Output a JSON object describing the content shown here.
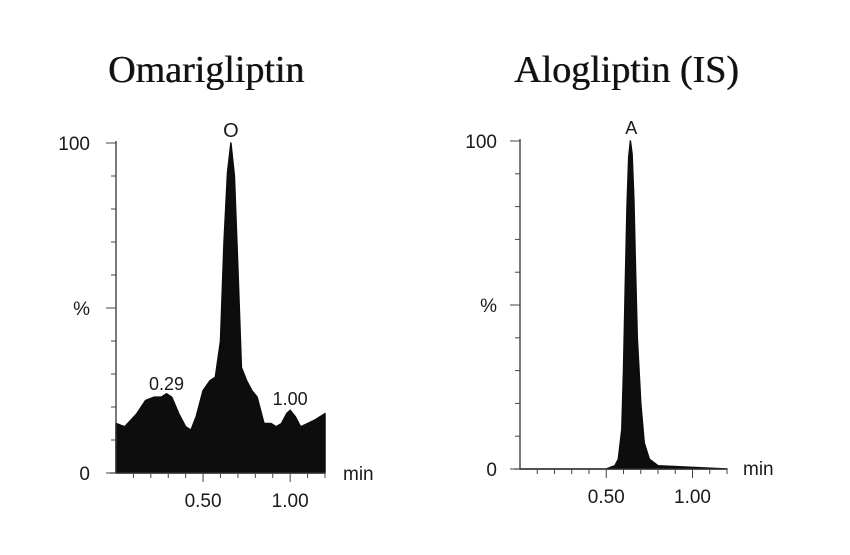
{
  "chart_data": [
    {
      "type": "line",
      "title": "Omarigliptin",
      "xlabel": "min",
      "ylabel": "%",
      "xlim": [
        0,
        1.2
      ],
      "ylim": [
        0,
        100
      ],
      "x_tick_labels": [
        "0.50",
        "1.00"
      ],
      "x_ticks": [
        0.5,
        1.0
      ],
      "y_tick_labels": [
        "0",
        "%",
        "100"
      ],
      "y_ticks": [
        0,
        50,
        100
      ],
      "filled": true,
      "series": [
        {
          "x": [
            0.0,
            0.05,
            0.12,
            0.17,
            0.22,
            0.26,
            0.29,
            0.32,
            0.36,
            0.4,
            0.43,
            0.46,
            0.5,
            0.54,
            0.57,
            0.6,
            0.62,
            0.64,
            0.66,
            0.68,
            0.7,
            0.72,
            0.75,
            0.78,
            0.81,
            0.85,
            0.89,
            0.92,
            0.95,
            0.98,
            1.0,
            1.03,
            1.06,
            1.1,
            1.14,
            1.2
          ],
          "y": [
            15,
            14,
            18,
            22,
            23,
            23,
            24,
            23,
            18,
            14,
            13,
            17,
            25,
            28,
            29,
            40,
            70,
            91,
            100,
            90,
            62,
            32,
            28,
            25,
            23,
            15,
            15,
            14,
            15,
            18,
            19,
            17,
            14,
            15,
            16,
            18
          ]
        }
      ],
      "annotations": [
        "O",
        "0.29",
        "1.00"
      ]
    },
    {
      "type": "line",
      "title": "Alogliptin (IS)",
      "xlabel": "min",
      "ylabel": "%",
      "xlim": [
        0,
        1.2
      ],
      "ylim": [
        0,
        100
      ],
      "x_tick_labels": [
        "0.50",
        "1.00"
      ],
      "x_ticks": [
        0.5,
        1.0
      ],
      "y_tick_labels": [
        "0",
        "%",
        "100"
      ],
      "y_ticks": [
        0,
        50,
        100
      ],
      "filled": true,
      "series": [
        {
          "x": [
            0.0,
            0.5,
            0.55,
            0.57,
            0.59,
            0.6,
            0.61,
            0.62,
            0.63,
            0.64,
            0.65,
            0.66,
            0.67,
            0.68,
            0.7,
            0.72,
            0.75,
            0.8,
            1.2
          ],
          "y": [
            0,
            0,
            1,
            3,
            12,
            30,
            55,
            80,
            95,
            100,
            96,
            82,
            60,
            40,
            20,
            8,
            3,
            1,
            0
          ]
        }
      ],
      "annotations": [
        "A"
      ]
    }
  ]
}
